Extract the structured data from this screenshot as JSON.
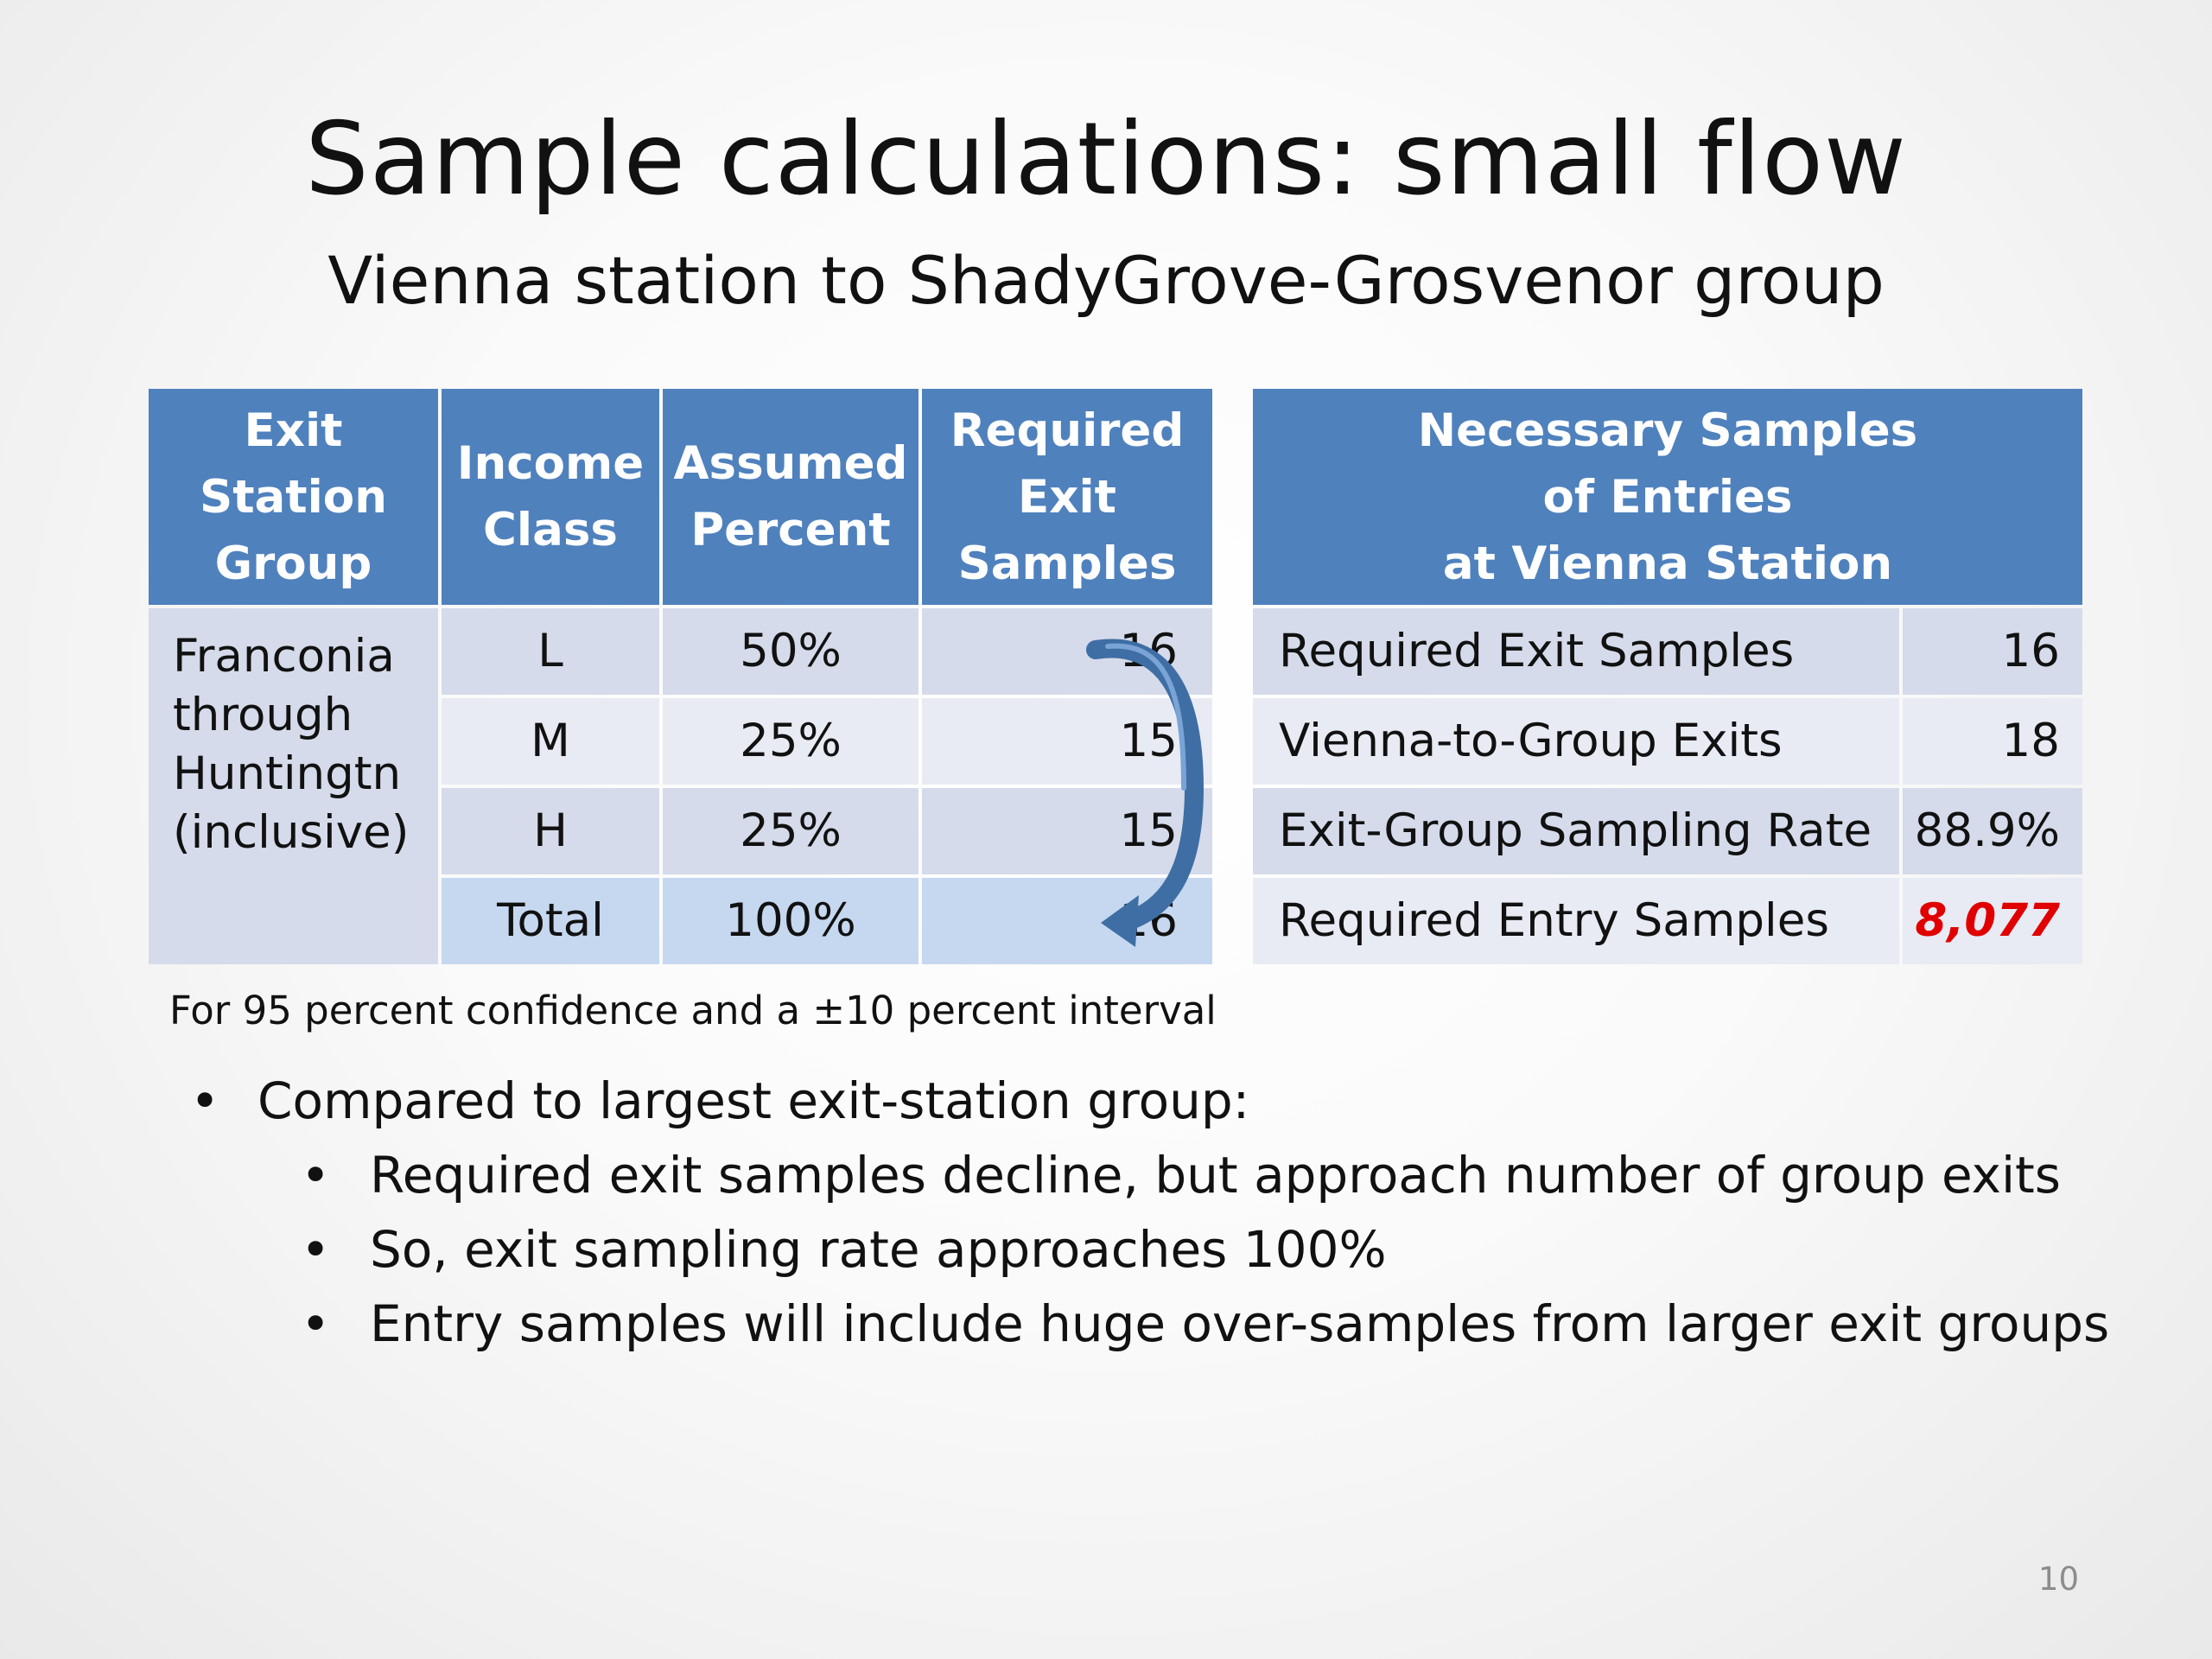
{
  "title": "Sample calculations: small flow",
  "subtitle": "Vienna station to ShadyGrove-Grosvenor group",
  "left_table": {
    "headers": [
      "Exit Station Group",
      "Income Class",
      "Assumed Percent",
      "Required Exit Samples"
    ],
    "group_lines": [
      "Franconia",
      "through",
      "Huntingtn",
      "(inclusive)"
    ],
    "rows": [
      {
        "income": "L",
        "percent": "50%",
        "samples": "16"
      },
      {
        "income": "M",
        "percent": "25%",
        "samples": "15"
      },
      {
        "income": "H",
        "percent": "25%",
        "samples": "15"
      },
      {
        "income": "Total",
        "percent": "100%",
        "samples": "16"
      }
    ]
  },
  "right_table": {
    "header_lines": [
      "Necessary Samples",
      "of Entries",
      "at Vienna Station"
    ],
    "rows": [
      {
        "label": "Required Exit Samples",
        "value": "16"
      },
      {
        "label": "Vienna-to-Group Exits",
        "value": "18"
      },
      {
        "label": "Exit-Group Sampling Rate",
        "value": "88.9%"
      },
      {
        "label": "Required Entry Samples",
        "value": "8,077"
      }
    ]
  },
  "footnote": "For 95 percent confidence and a ±10 percent interval",
  "bullets": {
    "main": "Compared to largest exit-station group:",
    "sub": [
      "Required exit samples decline, but approach number of group exits",
      "So, exit sampling rate approaches 100%",
      "Entry samples will include huge over-samples from larger exit groups"
    ]
  },
  "page_number": "10",
  "colors": {
    "header_blue": "#4f81bd",
    "highlight_red": "#e00000",
    "arrow": "#3f6ea4"
  }
}
